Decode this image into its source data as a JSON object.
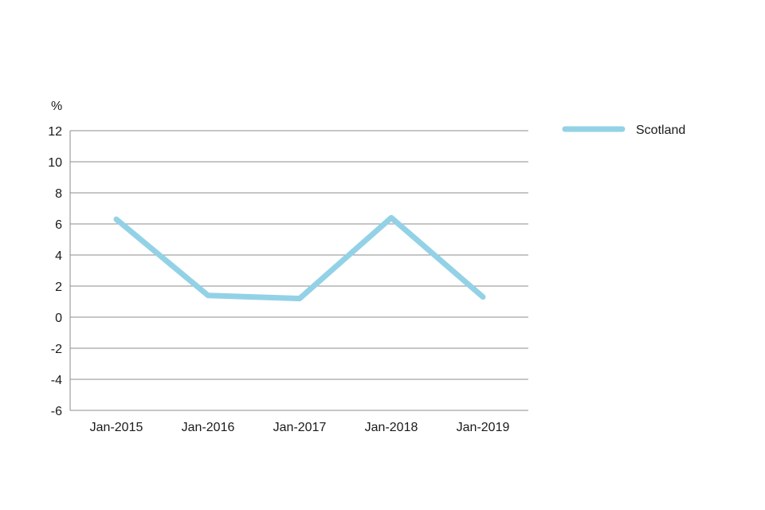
{
  "chart_data": {
    "type": "line",
    "title": "",
    "xlabel": "",
    "ylabel": "%",
    "categories": [
      "Jan-2015",
      "Jan-2016",
      "Jan-2017",
      "Jan-2018",
      "Jan-2019"
    ],
    "series": [
      {
        "name": "Scotland",
        "color": "#93d2e6",
        "values": [
          6.3,
          1.4,
          1.2,
          6.4,
          1.3
        ]
      }
    ],
    "ylim": [
      -6,
      12
    ],
    "yticks": [
      12,
      10,
      8,
      6,
      4,
      2,
      0,
      -2,
      -4,
      -6
    ],
    "ytick_labels": [
      "12",
      "10",
      "8",
      "6",
      "4",
      "2",
      "0",
      "-2",
      "-4",
      "-6"
    ],
    "grid": true,
    "gridline_color": "#8c8c8c",
    "legend_position": "right"
  }
}
